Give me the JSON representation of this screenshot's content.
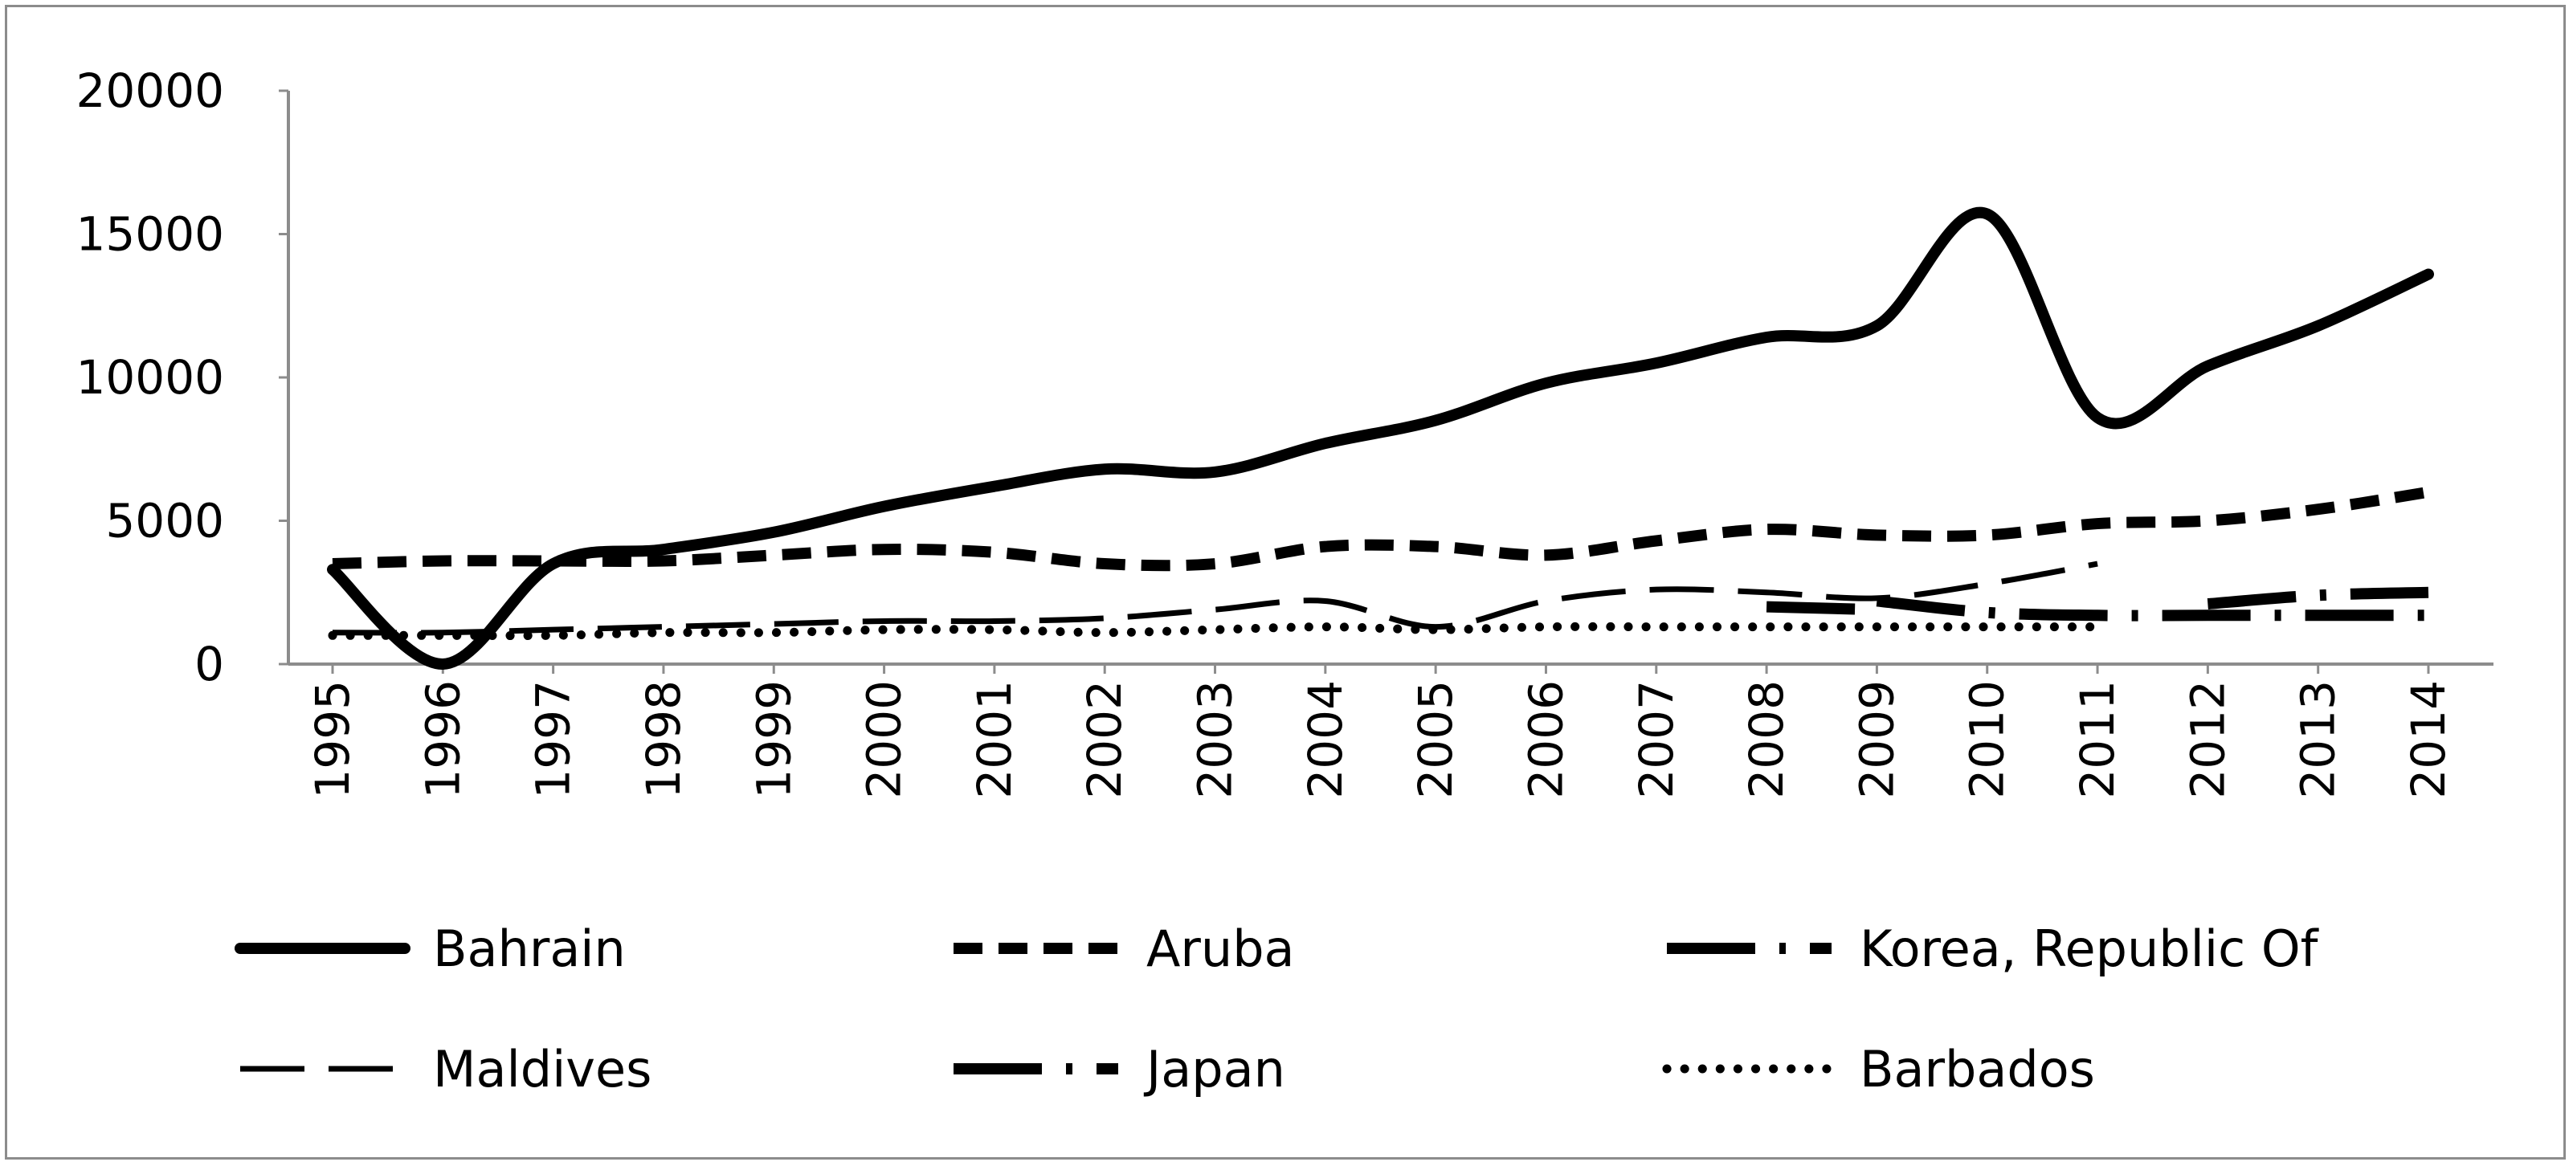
{
  "chart_data": {
    "type": "line",
    "title": "",
    "xlabel": "",
    "ylabel": "",
    "categories": [
      "1995",
      "1996",
      "1997",
      "1998",
      "1999",
      "2000",
      "2001",
      "2002",
      "2003",
      "2004",
      "2005",
      "2006",
      "2007",
      "2008",
      "2009",
      "2010",
      "2011",
      "2012",
      "2013",
      "2014"
    ],
    "ylim": [
      0,
      20000
    ],
    "yticks": [
      "0",
      "5000",
      "10000",
      "15000",
      "20000"
    ],
    "grid": false,
    "legend_position": "bottom",
    "series": [
      {
        "name": "Bahrain",
        "style": "solid-thick",
        "values": [
          3300,
          0,
          3500,
          4000,
          4600,
          5500,
          6200,
          6800,
          6700,
          7700,
          8500,
          9800,
          10500,
          11400,
          11800,
          15700,
          8600,
          10400,
          11800,
          13600
        ]
      },
      {
        "name": "Aruba",
        "style": "dashed-thick",
        "values": [
          3500,
          3600,
          3600,
          3600,
          3800,
          4000,
          3900,
          3500,
          3500,
          4100,
          4100,
          3800,
          4300,
          4700,
          4500,
          4500,
          4900,
          5000,
          5400,
          6000
        ]
      },
      {
        "name": "Korea, Republic Of",
        "style": "longdash-dot-thick",
        "values": [
          null,
          null,
          null,
          null,
          null,
          null,
          null,
          null,
          null,
          null,
          null,
          null,
          null,
          2000,
          1900,
          null,
          null,
          2100,
          2400,
          2500
        ]
      },
      {
        "name": "Maldives",
        "style": "longdash-thin",
        "values": [
          1100,
          1100,
          1200,
          1300,
          1400,
          1500,
          1500,
          1600,
          1900,
          2200,
          1300,
          2200,
          2600,
          2500,
          2300,
          2800,
          3500,
          null,
          null,
          null
        ]
      },
      {
        "name": "Japan",
        "style": "longdash-dot-thick",
        "values": [
          null,
          null,
          null,
          null,
          null,
          null,
          null,
          null,
          null,
          null,
          null,
          null,
          null,
          null,
          2200,
          1800,
          1700,
          1700,
          1700,
          1700
        ]
      },
      {
        "name": "Barbados",
        "style": "dotted",
        "values": [
          1000,
          1000,
          1000,
          1100,
          1100,
          1200,
          1200,
          1100,
          1200,
          1300,
          1200,
          1300,
          1300,
          1300,
          1300,
          1300,
          1300,
          null,
          null,
          null
        ]
      }
    ]
  },
  "colors": {
    "line": "#000000",
    "axis": "#8c8c8c",
    "frame": "#8c8c8c",
    "background": "#ffffff"
  }
}
